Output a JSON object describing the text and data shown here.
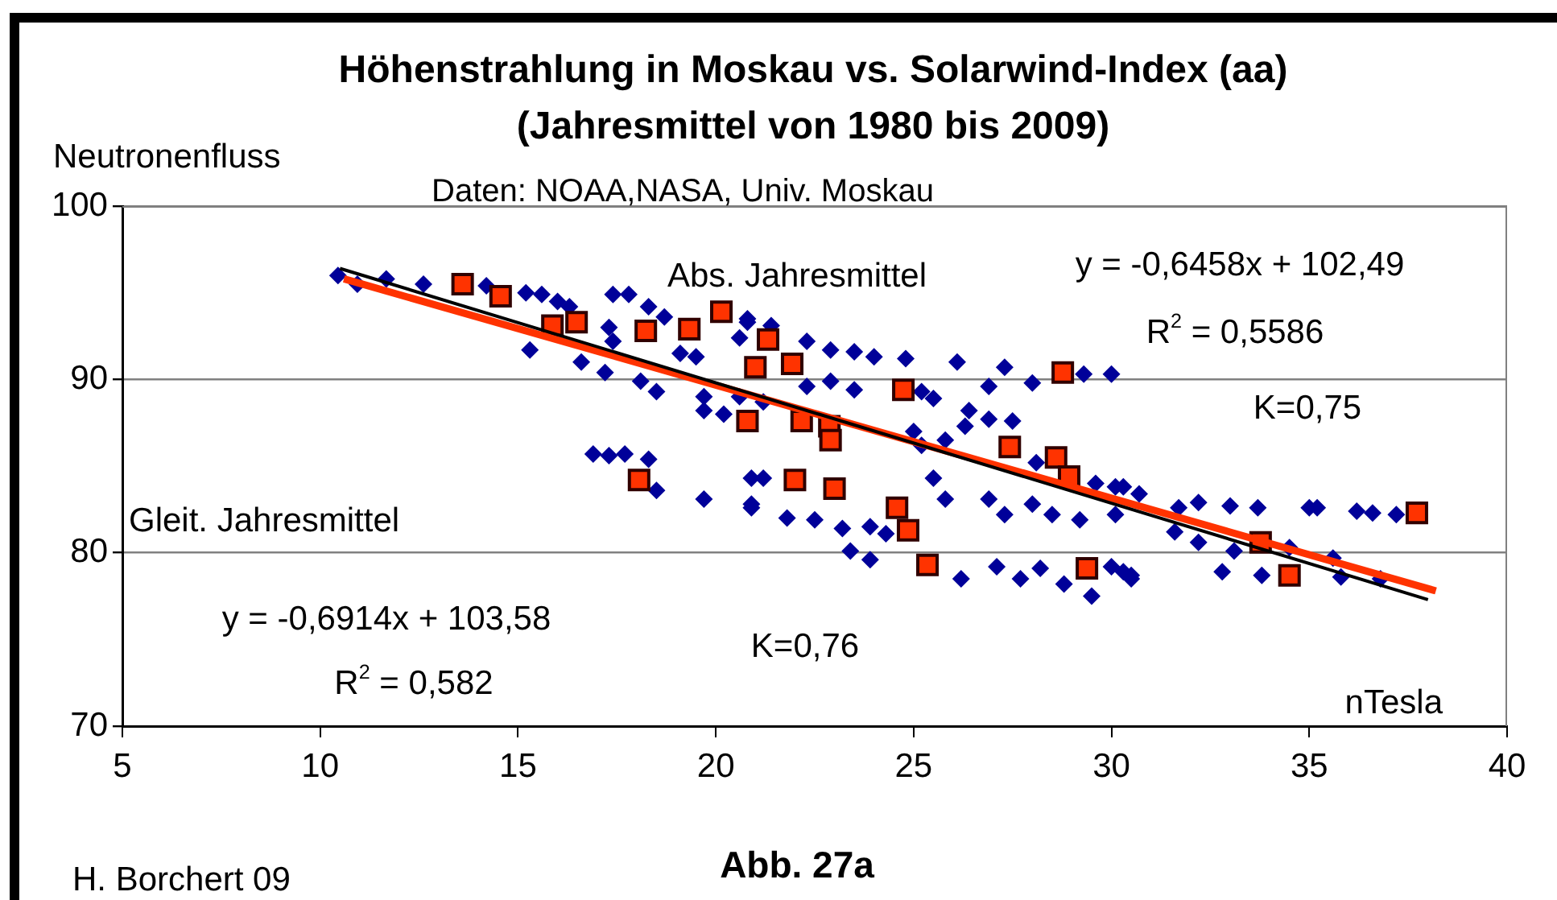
{
  "chart_data": {
    "type": "scatter",
    "title": "Höhenstrahlung in Moskau vs. Solarwind-Index (aa)\n(Jahresmittel von 1980 bis 2009)",
    "subtitle": "Daten: NOAA,NASA, Univ. Moskau",
    "xlabel": "nTesla",
    "ylabel": "Neutronenfluss",
    "xlim": [
      5,
      40
    ],
    "xticks": [
      5,
      10,
      15,
      20,
      25,
      30,
      35,
      40
    ],
    "ylim": [
      70,
      100
    ],
    "yticks": [
      70,
      80,
      90,
      100
    ],
    "grid": "y",
    "legend": false,
    "annotations": [
      "Abs. Jahresmittel",
      "y = -0,6458x + 102,49",
      "R$^{2}$ = 0,5586",
      "K=0,75",
      "Gleit. Jahresmittel",
      "y = -0,6914x + 103,58",
      "R$^{2}$ = 0,582",
      "K=0,76",
      "Abb. 27a",
      "H. Borchert 09"
    ],
    "series": [
      {
        "color": "#000099",
        "marker": "diamond",
        "x": [
          10.45,
          10.94,
          11.67,
          12.61,
          14.2,
          15.2,
          15.6,
          16.0,
          16.3,
          15.3,
          16.6,
          17.2,
          18.1,
          18.5,
          17.4,
          17.8,
          18.3,
          18.7,
          17.3,
          17.4,
          19.1,
          19.5,
          19.7,
          19.7,
          20.2,
          20.6,
          20.8,
          20.6,
          16.9,
          17.3,
          17.7,
          18.3,
          18.5,
          19.7,
          20.9,
          20.9,
          20.8,
          21.4,
          22.3,
          22.9,
          23.5,
          24.0,
          24.8,
          26.1,
          27.3,
          29.3,
          30.0,
          21.2,
          22.3,
          23.5,
          22.9,
          25.0,
          25.5,
          26.4,
          26.9,
          27.5,
          25.8,
          26.3,
          28.1,
          29.6,
          30.1,
          21.2,
          20.9,
          21.8,
          22.5,
          23.2,
          23.9,
          25.5,
          25.8,
          26.9,
          27.3,
          28.0,
          28.5,
          29.2,
          30.1,
          23.4,
          23.9,
          24.3,
          26.2,
          27.1,
          27.7,
          28.2,
          28.8,
          29.5,
          30.0,
          30.5,
          25.2,
          25.2,
          26.9,
          28.0,
          30.3,
          30.7,
          31.7,
          32.2,
          33.0,
          33.7,
          35.0,
          35.2,
          36.2,
          36.6,
          37.2,
          31.6,
          32.2,
          33.1,
          34.5,
          35.6,
          35.8,
          36.8,
          30.3,
          30.5,
          32.8,
          33.8
        ],
        "values": [
          96.0,
          95.5,
          95.8,
          95.5,
          95.4,
          95.0,
          94.9,
          94.5,
          94.2,
          91.7,
          91.0,
          90.4,
          89.9,
          89.3,
          94.9,
          94.9,
          94.2,
          93.6,
          93.0,
          92.2,
          91.5,
          91.3,
          89.0,
          88.2,
          88.0,
          89.0,
          93.3,
          92.4,
          85.7,
          85.6,
          85.7,
          85.4,
          83.6,
          83.1,
          84.3,
          82.6,
          93.5,
          93.1,
          92.2,
          91.7,
          91.6,
          91.3,
          91.2,
          91.0,
          90.7,
          90.3,
          90.3,
          88.7,
          89.6,
          89.4,
          89.9,
          87.0,
          88.9,
          88.2,
          87.7,
          87.6,
          86.5,
          87.3,
          85.2,
          84.0,
          83.8,
          84.3,
          82.8,
          82.0,
          81.9,
          81.4,
          81.5,
          84.3,
          83.1,
          83.1,
          82.2,
          82.8,
          82.2,
          81.9,
          82.2,
          80.1,
          79.6,
          81.1,
          78.5,
          79.2,
          78.5,
          79.1,
          78.2,
          77.5,
          79.2,
          78.7,
          86.2,
          89.3,
          89.6,
          89.8,
          83.8,
          83.4,
          82.6,
          82.9,
          82.7,
          82.6,
          82.6,
          82.6,
          82.4,
          82.3,
          82.2,
          81.2,
          80.6,
          80.1,
          80.3,
          79.7,
          78.6,
          78.5,
          78.9,
          78.5,
          78.9,
          78.7
        ]
      },
      {
        "color": "#ff3300",
        "marker": "square",
        "x": [
          13.6,
          14.56,
          15.87,
          16.48,
          18.23,
          19.33,
          20.14,
          18.06,
          21.32,
          21.0,
          21.93,
          20.8,
          22.17,
          22.87,
          22.9,
          24.74,
          22.0,
          23.0,
          24.58,
          24.86,
          25.35,
          28.77,
          27.43,
          28.6,
          28.93,
          29.38,
          33.77,
          34.5,
          37.72
        ],
        "values": [
          95.5,
          94.8,
          93.1,
          93.3,
          92.8,
          92.9,
          93.9,
          84.2,
          92.3,
          90.7,
          90.9,
          87.6,
          87.6,
          87.3,
          86.5,
          89.4,
          84.2,
          83.7,
          82.6,
          81.3,
          79.3,
          90.4,
          86.1,
          85.5,
          84.4,
          79.1,
          80.6,
          78.7,
          82.3
        ]
      },
      {
        "type": "line",
        "color": "#ff3300",
        "marker": "none",
        "x": [
          10.6,
          38.2
        ],
        "values": [
          95.8,
          77.8
        ]
      },
      {
        "type": "line",
        "color": "#000000",
        "marker": "none",
        "x": [
          10.5,
          38.0
        ],
        "values": [
          96.4,
          77.3
        ]
      }
    ]
  }
}
